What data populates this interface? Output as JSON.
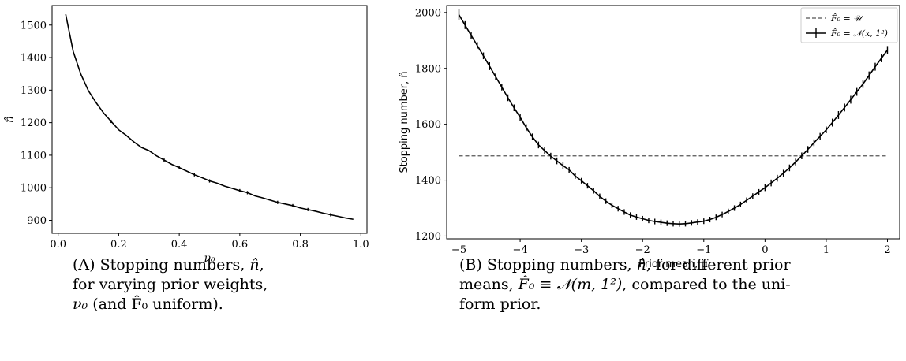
{
  "chart_data": [
    {
      "type": "line",
      "title": "",
      "xlabel": "ν₀",
      "ylabel": "n̂",
      "xlim": [
        -0.02,
        1.02
      ],
      "ylim": [
        860,
        1560
      ],
      "xticks": [
        "0.0",
        "0.2",
        "0.4",
        "0.6",
        "0.8",
        "1.0"
      ],
      "xtick_values": [
        0.0,
        0.2,
        0.4,
        0.6,
        0.8,
        1.0
      ],
      "yticks": [
        "900",
        "1000",
        "1100",
        "1200",
        "1300",
        "1400",
        "1500"
      ],
      "ytick_values": [
        900,
        1000,
        1100,
        1200,
        1300,
        1400,
        1500
      ],
      "grid": false,
      "series": [
        {
          "x": [
            0.025,
            0.05,
            0.075,
            0.1,
            0.125,
            0.15,
            0.175,
            0.2,
            0.225,
            0.25,
            0.275,
            0.3,
            0.325,
            0.35,
            0.375,
            0.4,
            0.425,
            0.45,
            0.475,
            0.5,
            0.525,
            0.55,
            0.575,
            0.6,
            0.625,
            0.65,
            0.675,
            0.7,
            0.725,
            0.75,
            0.775,
            0.8,
            0.825,
            0.85,
            0.875,
            0.9,
            0.925,
            0.95,
            0.975
          ],
          "y": [
            1533,
            1418,
            1349,
            1298,
            1262,
            1230,
            1204,
            1178,
            1161,
            1141,
            1124,
            1114,
            1098,
            1085,
            1072,
            1062,
            1051,
            1040,
            1031,
            1021,
            1014,
            1005,
            998,
            991,
            985,
            975,
            969,
            962,
            955,
            950,
            945,
            938,
            933,
            928,
            922,
            917,
            912,
            907,
            903
          ],
          "err": [
            0,
            0,
            0,
            0,
            0,
            0,
            5,
            0,
            0,
            0,
            0,
            0,
            0,
            5,
            0,
            5,
            0,
            5,
            0,
            5,
            0,
            0,
            0,
            5,
            5,
            0,
            0,
            0,
            5,
            0,
            5,
            0,
            5,
            0,
            0,
            5,
            0,
            0,
            0
          ]
        }
      ]
    },
    {
      "type": "line",
      "title": "",
      "xlabel": "Prior mean, μ",
      "ylabel": "Stopping number, n̂",
      "xlim": [
        -5.2,
        2.2
      ],
      "ylim": [
        1190,
        2025
      ],
      "xticks": [
        "−5",
        "−4",
        "−3",
        "−2",
        "−1",
        "0",
        "1",
        "2"
      ],
      "xtick_values": [
        -5,
        -4,
        -3,
        -2,
        -1,
        0,
        1,
        2
      ],
      "yticks": [
        "1200",
        "1400",
        "1600",
        "1800",
        "2000"
      ],
      "ytick_values": [
        1200,
        1400,
        1600,
        1800,
        2000
      ],
      "grid": false,
      "legend": "top-right",
      "series": [
        {
          "name": "F̂₀ = 𝒰",
          "style": "dashed",
          "x": [
            -5,
            2
          ],
          "y": [
            1487,
            1487
          ]
        },
        {
          "name": "F̂₀ = 𝒩(x, 1²)",
          "style": "solid-errorbar",
          "x": [
            -5.0,
            -4.9,
            -4.8,
            -4.7,
            -4.6,
            -4.5,
            -4.4,
            -4.3,
            -4.2,
            -4.1,
            -4.0,
            -3.9,
            -3.8,
            -3.7,
            -3.6,
            -3.5,
            -3.4,
            -3.3,
            -3.2,
            -3.1,
            -3.0,
            -2.9,
            -2.8,
            -2.7,
            -2.6,
            -2.5,
            -2.4,
            -2.3,
            -2.2,
            -2.1,
            -2.0,
            -1.9,
            -1.8,
            -1.7,
            -1.6,
            -1.5,
            -1.4,
            -1.3,
            -1.2,
            -1.1,
            -1.0,
            -0.9,
            -0.8,
            -0.7,
            -0.6,
            -0.5,
            -0.4,
            -0.3,
            -0.2,
            -0.1,
            0.0,
            0.1,
            0.2,
            0.3,
            0.4,
            0.5,
            0.6,
            0.7,
            0.8,
            0.9,
            1.0,
            1.1,
            1.2,
            1.3,
            1.4,
            1.5,
            1.6,
            1.7,
            1.8,
            1.9,
            2.0
          ],
          "y": [
            1992,
            1955,
            1918,
            1882,
            1845,
            1808,
            1770,
            1733,
            1695,
            1659,
            1625,
            1588,
            1555,
            1526,
            1506,
            1486,
            1469,
            1452,
            1437,
            1415,
            1398,
            1380,
            1362,
            1342,
            1325,
            1310,
            1298,
            1286,
            1275,
            1268,
            1262,
            1256,
            1252,
            1249,
            1246,
            1244,
            1243,
            1244,
            1247,
            1250,
            1253,
            1259,
            1267,
            1277,
            1288,
            1300,
            1313,
            1328,
            1343,
            1358,
            1373,
            1390,
            1407,
            1425,
            1444,
            1465,
            1487,
            1510,
            1534,
            1557,
            1580,
            1606,
            1633,
            1660,
            1688,
            1716,
            1744,
            1775,
            1806,
            1836,
            1866
          ],
          "err": [
            20,
            14,
            12,
            12,
            12,
            14,
            12,
            12,
            12,
            12,
            12,
            12,
            12,
            12,
            12,
            12,
            12,
            12,
            10,
            10,
            10,
            10,
            10,
            10,
            10,
            10,
            10,
            10,
            10,
            10,
            10,
            10,
            10,
            10,
            10,
            10,
            10,
            10,
            10,
            10,
            10,
            10,
            10,
            10,
            10,
            10,
            10,
            10,
            10,
            10,
            12,
            12,
            12,
            12,
            12,
            12,
            12,
            12,
            12,
            12,
            12,
            14,
            14,
            14,
            14,
            14,
            14,
            14,
            14,
            14,
            14
          ]
        }
      ]
    }
  ],
  "captions": {
    "a": {
      "line1_prefix": "(A) Stopping numbers, ",
      "line1_symbol": "n̂",
      "line1_suffix": ",",
      "line2": "for varying prior weights,",
      "line3_symbol": "ν₀",
      "line3_mid": " (and ",
      "line3_symbol2": "F̂₀",
      "line3_suffix": " uniform)."
    },
    "b": {
      "line1_prefix": "(B) Stopping numbers, ",
      "line1_symbol": "n̂",
      "line1_suffix": ", for different prior",
      "line2_prefix": "means, ",
      "line2_math": "F̂₀ ≡ 𝒩(m, 1²)",
      "line2_suffix": ", compared to the uni-",
      "line3": "form prior."
    }
  }
}
